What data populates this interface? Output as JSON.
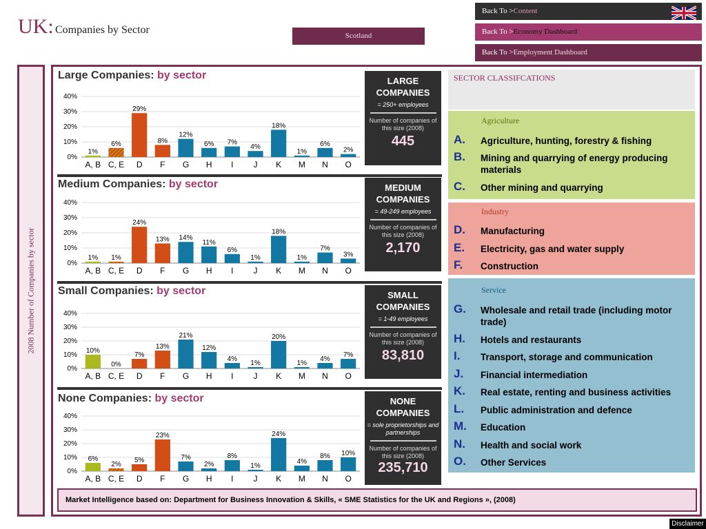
{
  "header": {
    "title_prefix": "UK:",
    "title": "Companies by Sector",
    "region_button": "Scotland"
  },
  "nav": [
    {
      "label": "Back  To  >",
      "link": "Content"
    },
    {
      "label": "Back  To  >",
      "link": "Economy Dashboard"
    },
    {
      "label": "Back  To  >",
      "link": "Employment Dashboard"
    }
  ],
  "side_label": "2008 Number of Companies by sector",
  "colors": {
    "agriculture": "#a9b91e",
    "industry": "#d24e16",
    "service": "#1379a3",
    "accent": "#7a2e55"
  },
  "charts": [
    {
      "title": "Large Companies: ",
      "title_by": "by sector",
      "box_title": "LARGE COMPANIES",
      "box_desc": "= 250+  employees",
      "box_note": "Number of companies of this size (2008)",
      "box_value": "445"
    },
    {
      "title": "Medium Companies: ",
      "title_by": "by sector",
      "box_title": "MEDIUM COMPANIES",
      "box_desc": "= 49-249 employees",
      "box_note": "Number of companies of this size (2008)",
      "box_value": "2,170"
    },
    {
      "title": "Small Companies: ",
      "title_by": "by sector",
      "box_title": "SMALL COMPANIES",
      "box_desc": "= 1-49 employees",
      "box_note": "Number of companies of this size (2008)",
      "box_value": "83,810"
    },
    {
      "title": "None Companies: ",
      "title_by": "by sector",
      "box_title": "NONE COMPANIES",
      "box_desc": "= sole proprietorships and partnerships",
      "box_note": "Number of companies of this size (2008)",
      "box_value": "235,710"
    }
  ],
  "chart_data": [
    {
      "type": "bar",
      "categories": [
        "A, B",
        "C, E",
        "D",
        "F",
        "G",
        "H",
        "I",
        "J",
        "K",
        "M",
        "N",
        "O"
      ],
      "values": [
        1,
        6,
        29,
        8,
        12,
        6,
        7,
        4,
        18,
        1,
        6,
        2
      ],
      "labels": [
        "1%",
        "6%",
        "29%",
        "8%",
        "12%",
        "6%",
        "7%",
        "4%",
        "18%",
        "1%",
        "6%",
        "2%"
      ],
      "yticks": [
        "0%",
        "10%",
        "20%",
        "30%",
        "40%"
      ],
      "ylim": [
        0,
        40
      ]
    },
    {
      "type": "bar",
      "categories": [
        "A, B",
        "C, E",
        "D",
        "F",
        "G",
        "H",
        "I",
        "J",
        "K",
        "M",
        "N",
        "O"
      ],
      "values": [
        1,
        1,
        24,
        13,
        14,
        11,
        6,
        1,
        18,
        1,
        7,
        3
      ],
      "labels": [
        "1%",
        "1%",
        "24%",
        "13%",
        "14%",
        "11%",
        "6%",
        "1%",
        "18%",
        "1%",
        "7%",
        "3%"
      ],
      "yticks": [
        "0%",
        "10%",
        "20%",
        "30%",
        "40%"
      ],
      "ylim": [
        0,
        40
      ]
    },
    {
      "type": "bar",
      "categories": [
        "A, B",
        "C, E",
        "D",
        "F",
        "G",
        "H",
        "I",
        "J",
        "K",
        "M",
        "N",
        "O"
      ],
      "values": [
        10,
        0,
        7,
        13,
        21,
        12,
        4,
        1,
        20,
        1,
        4,
        7
      ],
      "labels": [
        "10%",
        "0%",
        "7%",
        "13%",
        "21%",
        "12%",
        "4%",
        "1%",
        "20%",
        "1%",
        "4%",
        "7%"
      ],
      "yticks": [
        "0%",
        "10%",
        "20%",
        "30%",
        "40%"
      ],
      "ylim": [
        0,
        40
      ]
    },
    {
      "type": "bar",
      "categories": [
        "A, B",
        "C, E",
        "D",
        "F",
        "G",
        "H",
        "I",
        "J",
        "K",
        "M",
        "N",
        "O"
      ],
      "values": [
        6,
        2,
        5,
        23,
        7,
        2,
        8,
        1,
        24,
        4,
        8,
        10
      ],
      "labels": [
        "6%",
        "2%",
        "5%",
        "23%",
        "7%",
        "2%",
        "8%",
        "1%",
        "24%",
        "4%",
        "8%",
        "10%"
      ],
      "yticks": [
        "0%",
        "10%",
        "20%",
        "30%",
        "40%"
      ],
      "ylim": [
        0,
        40
      ]
    }
  ],
  "classification": {
    "title": "SECTOR CLASSIFCATIONS",
    "groups": [
      {
        "name": "Agriculture",
        "items": [
          {
            "letter": "A.",
            "text": "Agriculture, hunting, forestry & fishing"
          },
          {
            "letter": "B.",
            "text": "Mining and quarrying of energy producing materials"
          },
          {
            "letter": "C.",
            "text": "Other mining and quarrying"
          }
        ]
      },
      {
        "name": "Industry",
        "items": [
          {
            "letter": "D.",
            "text": "Manufacturing"
          },
          {
            "letter": "E.",
            "text": "Electricity, gas and water supply"
          },
          {
            "letter": "F.",
            "text": "Construction"
          }
        ]
      },
      {
        "name": "Service",
        "items": [
          {
            "letter": "G.",
            "text": "Wholesale and retail trade (including motor trade)"
          },
          {
            "letter": "H.",
            "text": "Hotels and restaurants"
          },
          {
            "letter": "I.",
            "text": "Transport, storage and communication"
          },
          {
            "letter": "J.",
            "text": "Financial intermediation"
          },
          {
            "letter": "K.",
            "text": "Real estate, renting and business activities"
          },
          {
            "letter": "L.",
            "text": "Public administration and defence"
          },
          {
            "letter": "M.",
            "text": "Education"
          },
          {
            "letter": "N.",
            "text": "Health and social work"
          },
          {
            "letter": "O.",
            "text": "Other Services"
          }
        ]
      }
    ]
  },
  "footer": "Market Intelligence based on: Department for Business Innovation & Skills, « SME Statistics for the UK and Regions », (2008)",
  "disclaimer": "Disclaimer"
}
